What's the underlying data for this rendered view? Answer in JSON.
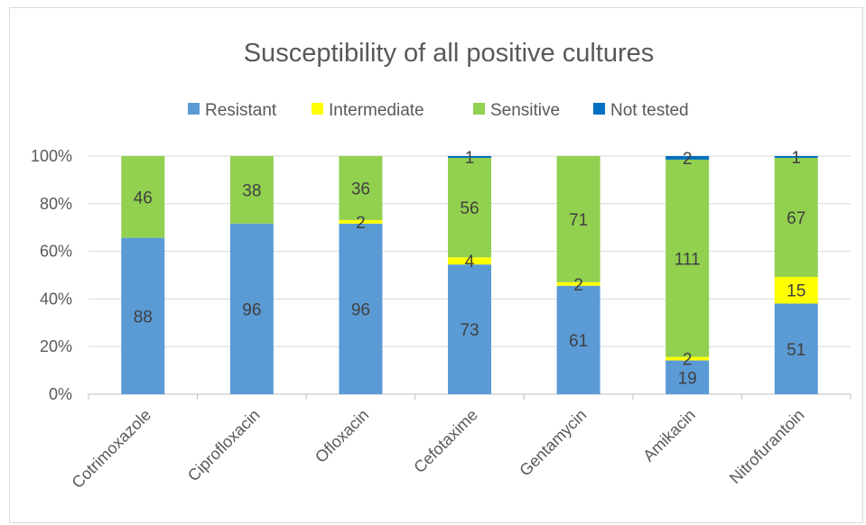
{
  "chart_data": {
    "type": "bar",
    "stacked": "percent",
    "title": "Susceptibility of all positive cultures",
    "xlabel": "",
    "ylabel": "",
    "categories": [
      "Cotrimoxazole",
      "Ciprofloxacin",
      "Ofloxacin",
      "Cefotaxime",
      "Gentamycin",
      "Amikacin",
      "Nitrofurantoin"
    ],
    "series": [
      {
        "name": "Resistant",
        "color": "#5b9bd5",
        "values": [
          88,
          96,
          96,
          73,
          61,
          19,
          51
        ]
      },
      {
        "name": "Intermediate",
        "color": "#ffff00",
        "values": [
          0,
          0,
          2,
          4,
          2,
          2,
          15
        ]
      },
      {
        "name": "Sensitive",
        "color": "#92d050",
        "values": [
          46,
          38,
          36,
          56,
          71,
          111,
          67
        ]
      },
      {
        "name": "Not tested",
        "color": "#0070c0",
        "values": [
          0,
          0,
          0,
          1,
          0,
          2,
          1
        ]
      }
    ],
    "y_ticks": [
      "0%",
      "20%",
      "40%",
      "60%",
      "80%",
      "100%"
    ],
    "ylim": [
      0,
      100
    ],
    "legend_position": "top",
    "grid": true
  }
}
